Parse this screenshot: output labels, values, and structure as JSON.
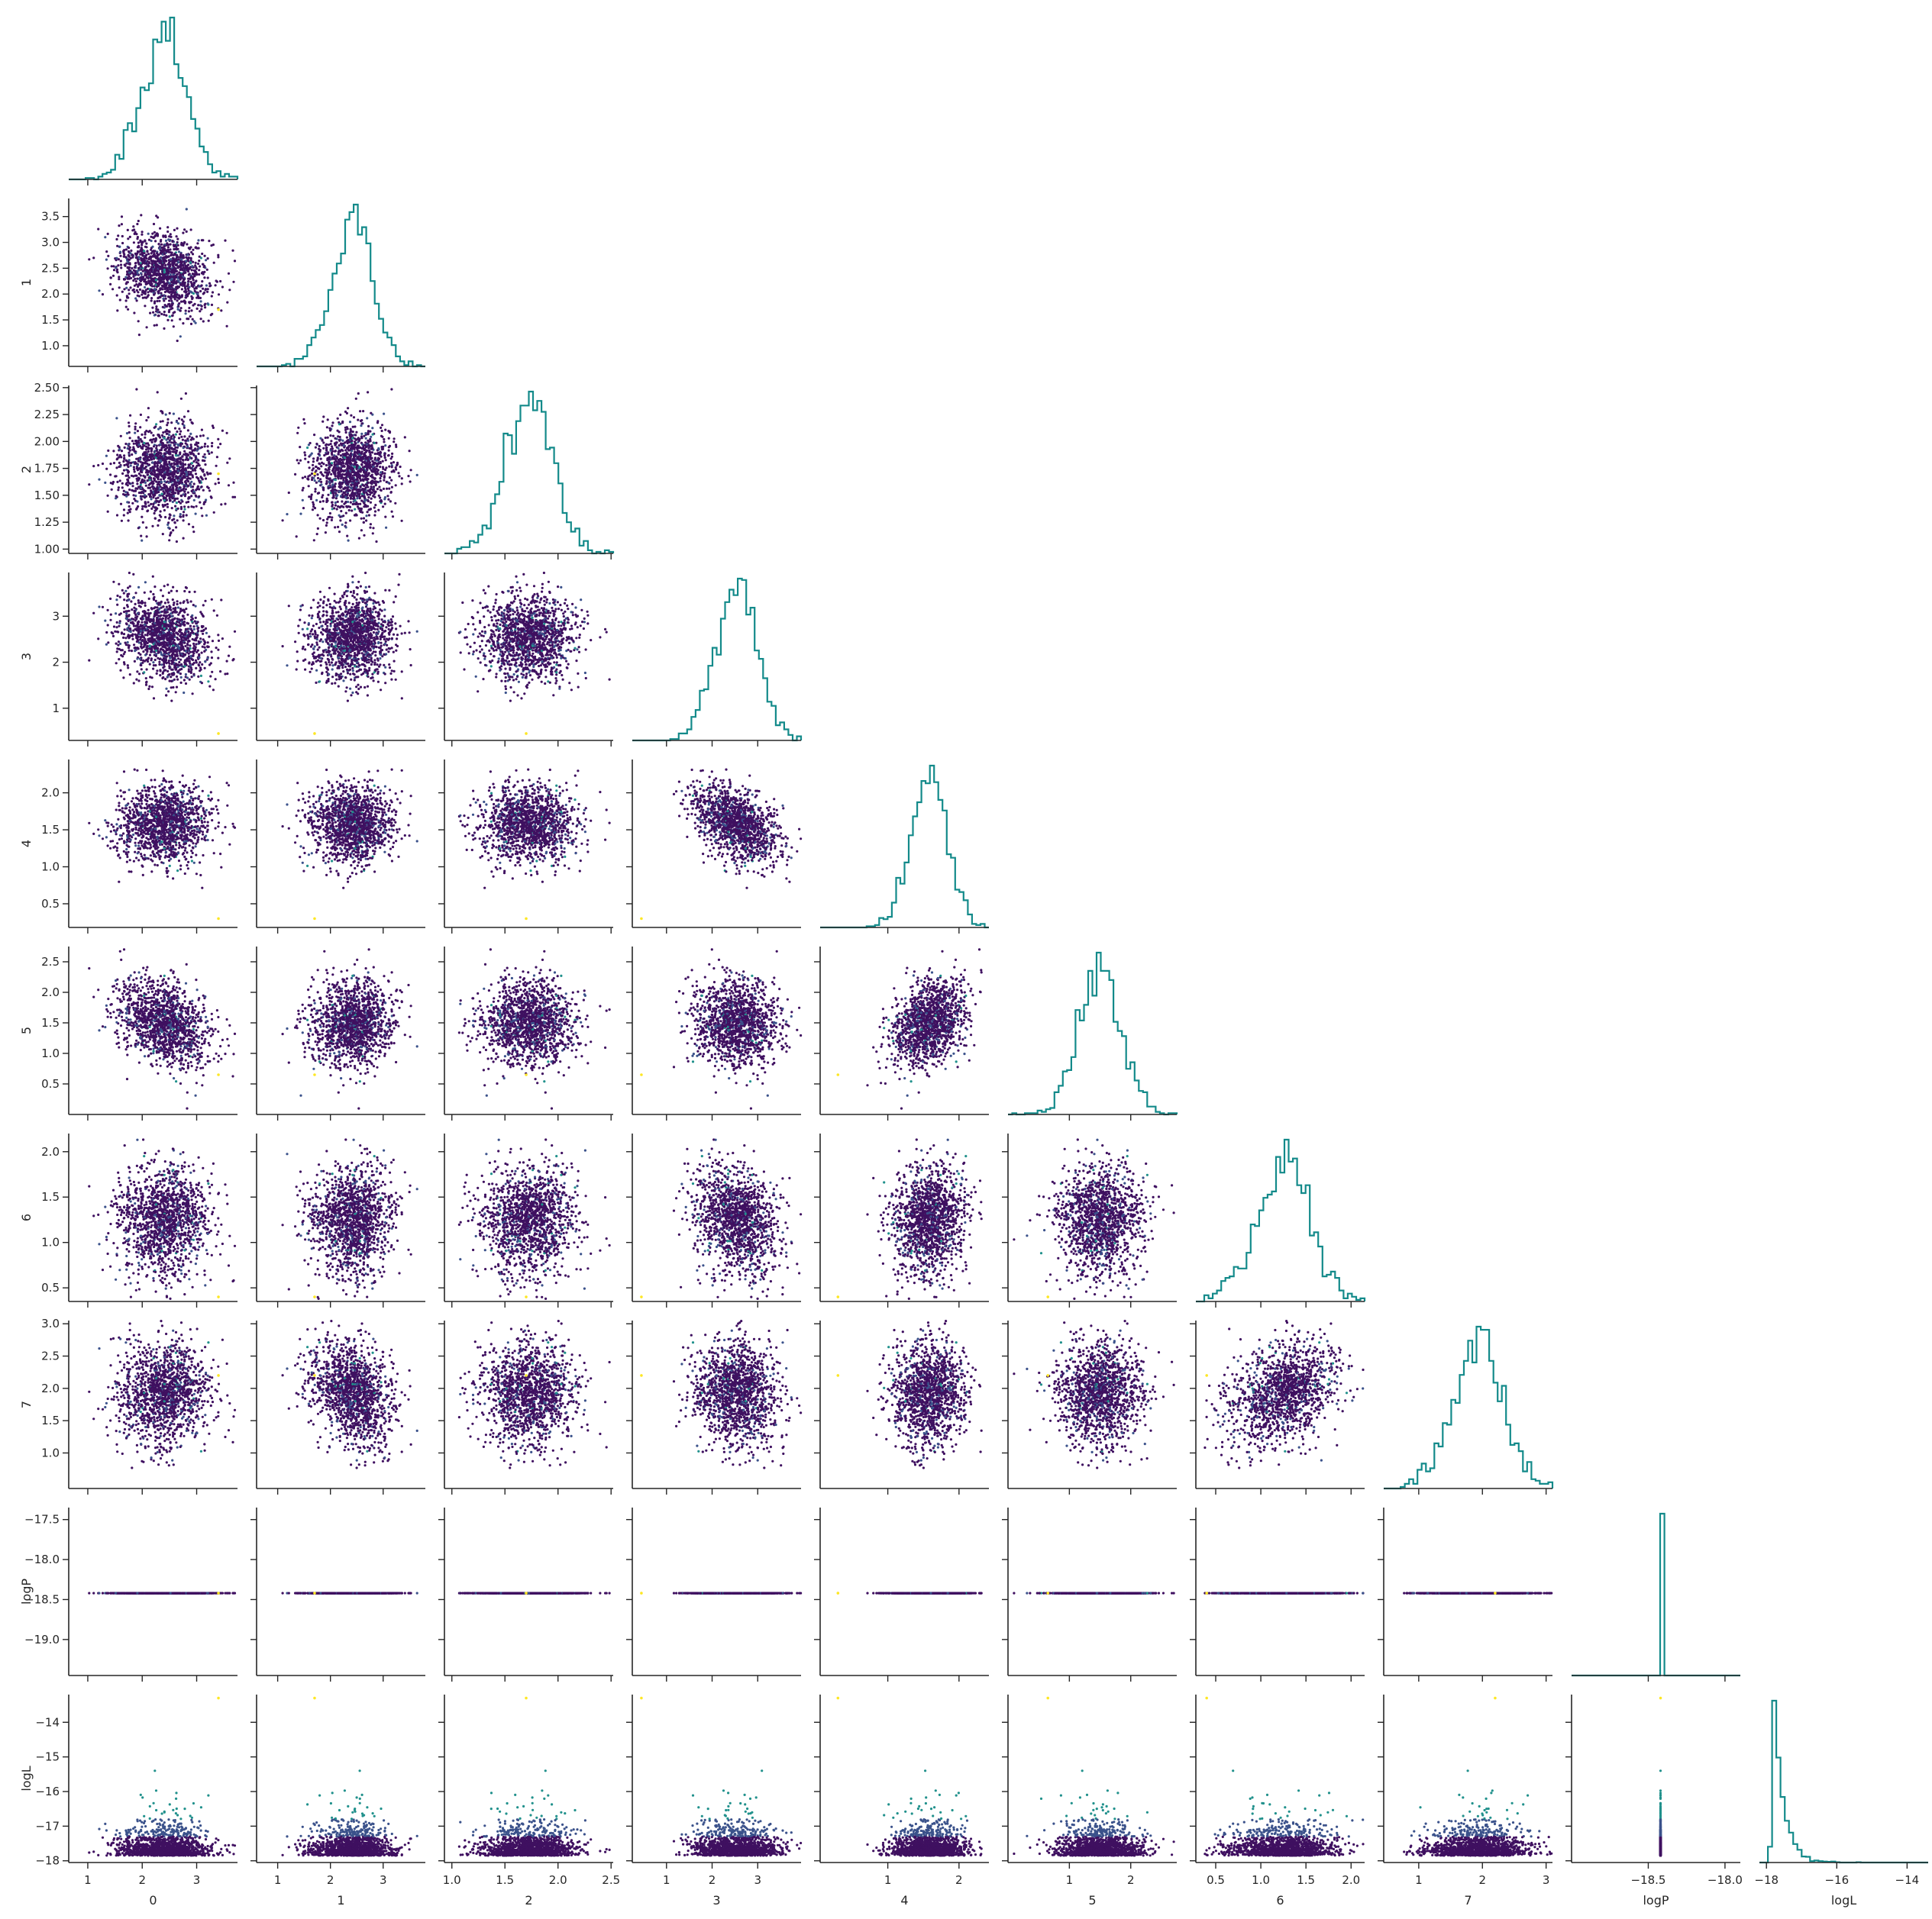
{
  "chart_data": {
    "type": "scatter",
    "layout": "corner",
    "variables": [
      "0",
      "1",
      "2",
      "3",
      "4",
      "5",
      "6",
      "7",
      "logP",
      "logL"
    ],
    "xlim": {
      "0": [
        0.65,
        3.75
      ],
      "1": [
        0.6,
        3.8
      ],
      "2": [
        0.93,
        2.52
      ],
      "3": [
        0.25,
        3.95
      ],
      "4": [
        0.05,
        2.42
      ],
      "5": [
        0.0,
        2.75
      ],
      "6": [
        0.28,
        2.15
      ],
      "7": [
        0.45,
        3.1
      ],
      "logP": [
        -19.0,
        -17.9
      ],
      "logL": [
        -18.2,
        -13.4
      ]
    },
    "ylim": {
      "1": [
        0.6,
        3.85
      ],
      "2": [
        0.96,
        2.52
      ],
      "3": [
        0.3,
        3.95
      ],
      "4": [
        0.18,
        2.45
      ],
      "5": [
        0.0,
        2.75
      ],
      "6": [
        0.35,
        2.2
      ],
      "7": [
        0.45,
        3.05
      ],
      "logP": [
        -19.45,
        -17.35
      ],
      "logL": [
        -18.05,
        -13.2
      ]
    },
    "xticks": {
      "0": [
        "1",
        "2",
        "3"
      ],
      "1": [
        "1",
        "2",
        "3"
      ],
      "2": [
        "1.0",
        "1.5",
        "2.0",
        "2.5"
      ],
      "3": [
        "1",
        "2",
        "3"
      ],
      "4": [
        "1",
        "2"
      ],
      "5": [
        "1",
        "2"
      ],
      "6": [
        "0.5",
        "1.0",
        "1.5",
        "2.0"
      ],
      "7": [
        "1",
        "2",
        "3"
      ],
      "logP": [
        "−18.5",
        "−18.0"
      ],
      "logL": [
        "−18",
        "−16",
        "−14"
      ]
    },
    "yticks": {
      "1": [
        "1.0",
        "1.5",
        "2.0",
        "2.5",
        "3.0",
        "3.5"
      ],
      "2": [
        "1.00",
        "1.25",
        "1.50",
        "1.75",
        "2.00",
        "2.25",
        "2.50"
      ],
      "3": [
        "1",
        "2",
        "3"
      ],
      "4": [
        "0.5",
        "1.0",
        "1.5",
        "2.0"
      ],
      "5": [
        "0.5",
        "1.0",
        "1.5",
        "2.0",
        "2.5"
      ],
      "6": [
        "0.5",
        "1.0",
        "1.5",
        "2.0"
      ],
      "7": [
        "1.0",
        "1.5",
        "2.0",
        "2.5",
        "3.0"
      ],
      "logP": [
        "−17.5",
        "−18.0",
        "−18.5",
        "−19.0"
      ],
      "logL": [
        "−14",
        "−15",
        "−16",
        "−17",
        "−18"
      ]
    },
    "marginals": {
      "0": {
        "mean": 2.4,
        "std": 0.42
      },
      "1": {
        "mean": 2.4,
        "std": 0.4
      },
      "2": {
        "mean": 1.73,
        "std": 0.22
      },
      "3": {
        "mean": 2.55,
        "std": 0.45
      },
      "4": {
        "mean": 1.58,
        "std": 0.25
      },
      "5": {
        "mean": 1.5,
        "std": 0.35
      },
      "6": {
        "mean": 1.25,
        "std": 0.3
      },
      "7": {
        "mean": 1.95,
        "std": 0.38
      },
      "logP": {
        "value": -18.42
      },
      "logL": {
        "min": -17.85,
        "mode": -17.75,
        "scale": 0.28
      }
    },
    "correlations": {
      "0-1": -0.25,
      "0-3": -0.25,
      "0-5": -0.35,
      "1-7": -0.3,
      "3-4": -0.45,
      "4-5": 0.3,
      "6-7": 0.3,
      "3-6": -0.2
    },
    "grid": false,
    "legend": "none",
    "diag_type": "step-histogram",
    "offdiag_type": "scatter",
    "colors": {
      "histogram": "#138a8a",
      "points_low": "#3f1060",
      "points_mid": "#3b528b",
      "points_high": "#21918c",
      "outlier": "#fde725",
      "axis": "#262626"
    }
  }
}
